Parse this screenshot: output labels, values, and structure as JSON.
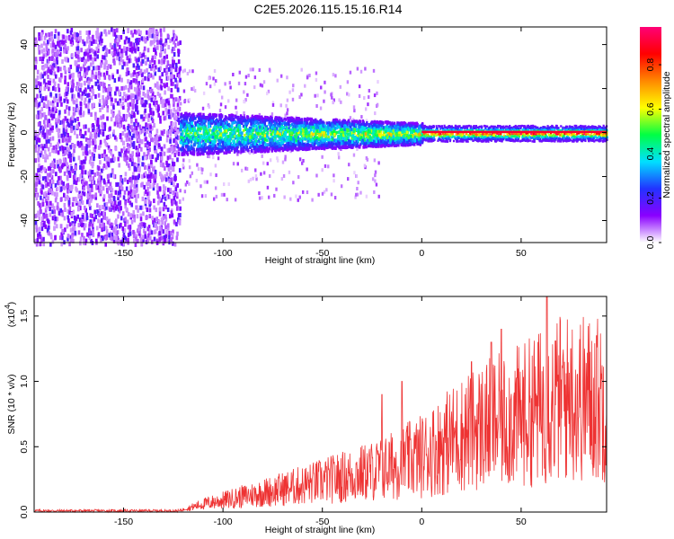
{
  "title": "C2E5.2026.115.15.16.R14",
  "chart_data": [
    {
      "type": "heatmap",
      "xlabel": "Height of straight line (km)",
      "ylabel": "Frequency (Hz)",
      "xlim": [
        -195,
        93
      ],
      "ylim": [
        -50,
        48
      ],
      "xticks": [
        -150,
        -100,
        -50,
        0,
        50
      ],
      "yticks": [
        -40,
        -20,
        0,
        20,
        40
      ],
      "grid": false,
      "colorbar": {
        "label": "Normalized spectral amplitude",
        "range": [
          0,
          0.97
        ],
        "ticks": [
          0.0,
          0.2,
          0.4,
          0.6,
          0.8
        ],
        "colors": [
          "#ffffff",
          "#8a00ff",
          "#2233ff",
          "#00e0ff",
          "#00ff44",
          "#ffff00",
          "#ff8800",
          "#ff0000",
          "#ff0077"
        ]
      },
      "regions": [
        {
          "x_range": [
            -195,
            -122
          ],
          "freq_spread": [
            -50,
            48
          ],
          "amplitude": [
            0.05,
            0.2
          ],
          "description": "broadband noise"
        },
        {
          "x_range": [
            -122,
            0
          ],
          "center_freq": 0,
          "half_width": [
            6,
            3
          ],
          "amplitude": [
            0.2,
            0.6
          ]
        },
        {
          "x_range": [
            0,
            93
          ],
          "center_freq": 0,
          "half_width": 2,
          "amplitude": [
            0.6,
            0.97
          ]
        }
      ]
    },
    {
      "type": "line",
      "xlabel": "Height of straight line (km)",
      "ylabel": "SNR (10 * v/v)",
      "y_multiplier": "(x10^4)",
      "y_multiplier_base": "(x10",
      "y_multiplier_exp": "4",
      "xlim": [
        -195,
        93
      ],
      "ylim": [
        0,
        1.65
      ],
      "xticks": [
        -150,
        -100,
        -50,
        0,
        50
      ],
      "yticks": [
        "0.0",
        "0.5",
        "1.0",
        "1.5"
      ],
      "color": "#ee3333",
      "series": [
        {
          "name": "SNR",
          "trend": [
            [
              -195,
              0.01
            ],
            [
              -122,
              0.01
            ],
            [
              -110,
              0.06
            ],
            [
              -60,
              0.2
            ],
            [
              -20,
              0.32
            ],
            [
              0,
              0.42
            ],
            [
              25,
              0.62
            ],
            [
              50,
              0.72
            ],
            [
              70,
              0.85
            ],
            [
              93,
              0.85
            ]
          ],
          "peaks": [
            [
              -20,
              0.9
            ],
            [
              -10,
              1.0
            ],
            [
              25,
              1.15
            ],
            [
              35,
              1.3
            ],
            [
              40,
              1.4
            ],
            [
              63,
              1.65
            ],
            [
              75,
              1.25
            ],
            [
              88,
              1.35
            ]
          ]
        }
      ]
    }
  ]
}
